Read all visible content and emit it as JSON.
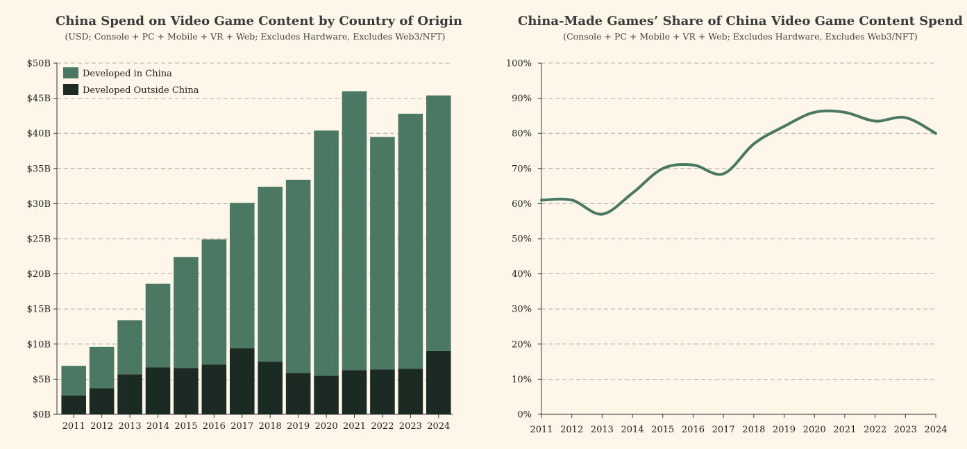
{
  "chart_data": [
    {
      "type": "bar",
      "stacked": true,
      "title": "China Spend on Video Game Content by Country of Origin",
      "subtitle": "(USD; Console + PC + Mobile + VR + Web; Excludes Hardware, Excludes Web3/NFT)",
      "categories": [
        "2011",
        "2012",
        "2013",
        "2014",
        "2015",
        "2016",
        "2017",
        "2018",
        "2019",
        "2020",
        "2021",
        "2022",
        "2023",
        "2024"
      ],
      "series": [
        {
          "name": "Developed Outside China",
          "color": "#1c2a24",
          "values": [
            2.7,
            3.7,
            5.7,
            6.7,
            6.6,
            7.1,
            9.4,
            7.5,
            5.9,
            5.5,
            6.3,
            6.4,
            6.5,
            9.0
          ]
        },
        {
          "name": "Developed in China",
          "color": "#4a7862",
          "values": [
            4.2,
            5.9,
            7.7,
            11.9,
            15.8,
            17.8,
            20.7,
            24.9,
            27.5,
            34.9,
            39.7,
            33.1,
            36.3,
            36.4
          ]
        }
      ],
      "ylim": [
        0,
        50
      ],
      "yticks": [
        "$0B",
        "$5B",
        "$10B",
        "$15B",
        "$20B",
        "$25B",
        "$30B",
        "$35B",
        "$40B",
        "$45B",
        "$50B"
      ],
      "legend": "top-left",
      "grid": true
    },
    {
      "type": "line",
      "title": "China-Made Games’ Share of China Video Game Content Spend",
      "subtitle": "(Console + PC + Mobile + VR + Web; Excludes Hardware, Excludes Web3/NFT)",
      "x": [
        "2011",
        "2012",
        "2013",
        "2014",
        "2015",
        "2016",
        "2017",
        "2018",
        "2019",
        "2020",
        "2021",
        "2022",
        "2023",
        "2024"
      ],
      "series": [
        {
          "color": "#4a7862",
          "values": [
            61,
            61,
            57,
            63,
            70,
            71,
            68.5,
            77,
            82,
            86,
            86,
            83.5,
            84.5,
            80
          ]
        }
      ],
      "ylim": [
        0,
        100
      ],
      "yticks": [
        "0%",
        "10%",
        "20%",
        "30%",
        "40%",
        "50%",
        "60%",
        "70%",
        "80%",
        "90%",
        "100%"
      ],
      "grid": true
    }
  ]
}
